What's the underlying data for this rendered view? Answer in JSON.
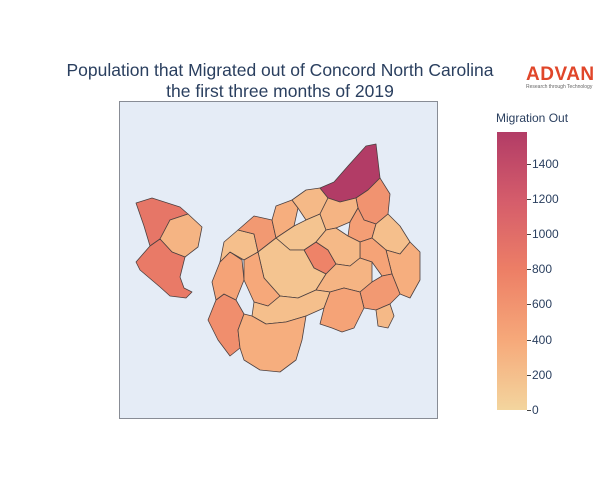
{
  "title_line1": "Population that Migrated out of Concord North Carolina",
  "title_line2": "the first three months of 2019",
  "logo": {
    "word": "ADVAN",
    "tagline": "Research through Technology"
  },
  "colorbar": {
    "title": "Migration Out",
    "ticks": [
      "0",
      "200",
      "400",
      "600",
      "800",
      "1000",
      "1200",
      "1400"
    ],
    "range": [
      0,
      1580
    ],
    "colors": [
      "#f3d59e",
      "#f6a97a",
      "#ed7f66",
      "#d55d6b",
      "#b23c66"
    ]
  },
  "map": {
    "regions": [
      {
        "id": "nw-north",
        "value": 900
      },
      {
        "id": "nw-middle",
        "value": 300
      },
      {
        "id": "nw-south",
        "value": 850
      },
      {
        "id": "ne-spike",
        "value": 1580
      },
      {
        "id": "center-hot",
        "value": 900
      },
      {
        "id": "west-south",
        "value": 650
      },
      {
        "id": "c1",
        "value": 450
      },
      {
        "id": "c2",
        "value": 200
      },
      {
        "id": "c3",
        "value": 550
      },
      {
        "id": "c4",
        "value": 350
      },
      {
        "id": "c5",
        "value": 250
      },
      {
        "id": "c6",
        "value": 600
      },
      {
        "id": "c7",
        "value": 750
      },
      {
        "id": "c8",
        "value": 150
      },
      {
        "id": "c9",
        "value": 300
      },
      {
        "id": "c10",
        "value": 500
      },
      {
        "id": "c11",
        "value": 200
      },
      {
        "id": "c12",
        "value": 350
      },
      {
        "id": "c13",
        "value": 450
      },
      {
        "id": "c14",
        "value": 250
      },
      {
        "id": "c15",
        "value": 150
      },
      {
        "id": "c16",
        "value": 400
      },
      {
        "id": "c17",
        "value": 300
      },
      {
        "id": "c18",
        "value": 550
      },
      {
        "id": "c19",
        "value": 200
      },
      {
        "id": "c20",
        "value": 350
      },
      {
        "id": "c21",
        "value": 450
      },
      {
        "id": "c22",
        "value": 250
      }
    ]
  }
}
